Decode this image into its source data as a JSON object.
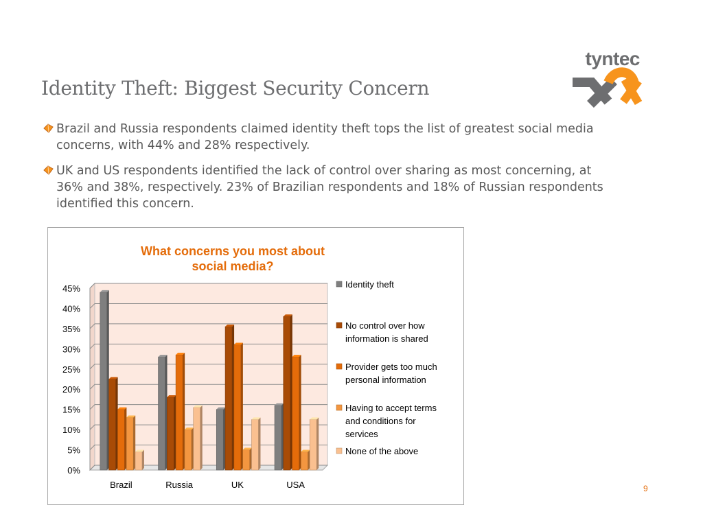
{
  "logo": {
    "text": "tyntec",
    "primary_color": "#f7941d",
    "secondary_color": "#6d6e70"
  },
  "slide": {
    "title": "Identity Theft: Biggest Security Concern",
    "bullets": [
      {
        "icon": "diamond-bullet-icon",
        "text": "Brazil and Russia respondents claimed identity theft tops the list of greatest social media concerns, with 44% and 28% respectively."
      },
      {
        "icon": "diamond-bullet-icon",
        "text": "UK and US respondents identified the lack of control over sharing as most concerning, at 36% and 38%, respectively. 23% of Brazilian respondents and 18% of Russian respondents identified this concern."
      }
    ],
    "page_number": "9"
  },
  "chart_data": {
    "type": "bar",
    "title": "What concerns you most about social media?",
    "title_lines": [
      "What concerns you most about",
      "social media?"
    ],
    "categories": [
      "Brazil",
      "Russia",
      "UK",
      "USA"
    ],
    "series": [
      {
        "name": "Identity theft",
        "values": [
          44,
          28,
          15,
          16
        ],
        "color": "#7f7f7f"
      },
      {
        "name": "No control over how information is shared",
        "values": [
          22.5,
          18,
          35.5,
          38
        ],
        "color": "#a84b06"
      },
      {
        "name": "Provider gets too much personal information",
        "values": [
          15,
          28.5,
          31,
          28
        ],
        "color": "#e46c0a"
      },
      {
        "name": "Having to accept terms and conditions for services",
        "values": [
          13,
          10,
          5,
          4.5
        ],
        "color": "#f39640"
      },
      {
        "name": "None of the above",
        "values": [
          4.5,
          15.5,
          12.5,
          12.5
        ],
        "color": "#fac090"
      }
    ],
    "legend_lines": [
      [
        "Identity theft"
      ],
      [
        "No control over how",
        "information is shared"
      ],
      [
        "Provider gets too much",
        "personal information"
      ],
      [
        "Having to accept terms",
        "and conditions for",
        "services"
      ],
      [
        "None of the above"
      ]
    ],
    "ylim": [
      0,
      45
    ],
    "yticks": [
      0,
      5,
      10,
      15,
      20,
      25,
      30,
      35,
      40,
      45
    ],
    "ytick_labels": [
      "0%",
      "5%",
      "10%",
      "15%",
      "20%",
      "25%",
      "30%",
      "35%",
      "40%",
      "45%"
    ],
    "y_unit": "%",
    "grid": true,
    "legend_position": "right",
    "plot_background": "#fde9e0",
    "title_color": "#e46c0a"
  }
}
